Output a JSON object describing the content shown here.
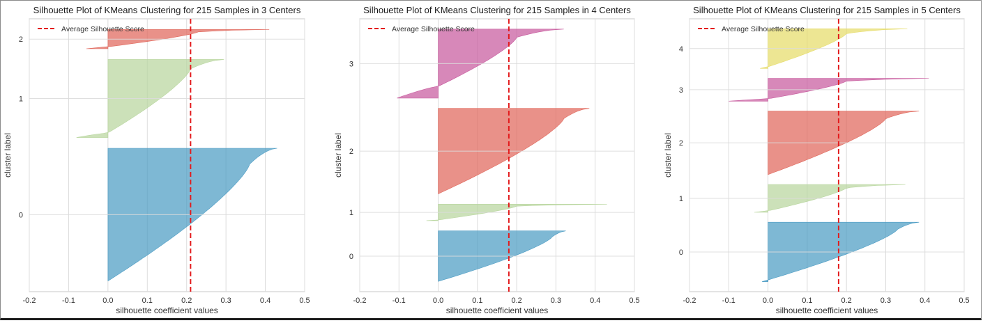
{
  "chart_data": [
    {
      "type": "silhouette",
      "title": "Silhouette Plot of KMeans Clustering for 215 Samples in 3 Centers",
      "xlabel": "silhouette coefficient values",
      "ylabel": "cluster label",
      "xlim": [
        -0.2,
        0.5
      ],
      "xticks": [
        "-0.2",
        "-0.1",
        "0.0",
        "0.1",
        "0.2",
        "0.3",
        "0.4",
        "0.5"
      ],
      "average_score": 0.21,
      "legend": {
        "label": "Average Silhouette Score",
        "position": "top-left"
      },
      "grid": true,
      "clusters": [
        {
          "label": "0",
          "color": "#4c9cc4",
          "size": 124,
          "max": 0.43,
          "min": 0.0,
          "knee": 0.36,
          "neg_frac": 0.0
        },
        {
          "label": "1",
          "color": "#b8d69e",
          "size": 73,
          "max": 0.295,
          "min": -0.08,
          "knee": 0.21,
          "neg_frac": 0.06
        },
        {
          "label": "2",
          "color": "#e0675b",
          "size": 18,
          "max": 0.41,
          "min": -0.055,
          "knee": 0.23,
          "neg_frac": 0.1
        }
      ]
    },
    {
      "type": "silhouette",
      "title": "Silhouette Plot of KMeans Clustering for 215 Samples in 4 Centers",
      "xlabel": "silhouette coefficient values",
      "ylabel": "cluster label",
      "xlim": [
        -0.2,
        0.5
      ],
      "xticks": [
        "-0.2",
        "-0.1",
        "0.0",
        "0.1",
        "0.2",
        "0.3",
        "0.4",
        "0.5"
      ],
      "average_score": 0.18,
      "legend": {
        "label": "Average Silhouette Score",
        "position": "top-left"
      },
      "grid": true,
      "clusters": [
        {
          "label": "0",
          "color": "#4c9cc4",
          "size": 49,
          "max": 0.325,
          "min": 0.0,
          "knee": 0.29,
          "neg_frac": 0.0
        },
        {
          "label": "1",
          "color": "#b8d69e",
          "size": 16,
          "max": 0.43,
          "min": -0.03,
          "knee": 0.2,
          "neg_frac": 0.04
        },
        {
          "label": "2",
          "color": "#e0675b",
          "size": 83,
          "max": 0.385,
          "min": 0.0,
          "knee": 0.32,
          "neg_frac": 0.0
        },
        {
          "label": "3",
          "color": "#c75a9e",
          "size": 67,
          "max": 0.32,
          "min": -0.105,
          "knee": 0.2,
          "neg_frac": 0.17
        }
      ]
    },
    {
      "type": "silhouette",
      "title": "Silhouette Plot of KMeans Clustering for 215 Samples in 5 Centers",
      "xlabel": "silhouette coefficient values",
      "ylabel": "cluster label",
      "xlim": [
        -0.2,
        0.5
      ],
      "xticks": [
        "-0.2",
        "-0.1",
        "0.0",
        "0.1",
        "0.2",
        "0.3",
        "0.4",
        "0.5"
      ],
      "average_score": 0.18,
      "legend": {
        "label": "Average Silhouette Score",
        "position": "top-left"
      },
      "grid": true,
      "clusters": [
        {
          "label": "0",
          "color": "#4c9cc4",
          "size": 60,
          "max": 0.385,
          "min": -0.015,
          "knee": 0.33,
          "neg_frac": 0.03
        },
        {
          "label": "1",
          "color": "#b8d69e",
          "size": 28,
          "max": 0.35,
          "min": -0.035,
          "knee": 0.2,
          "neg_frac": 0.05
        },
        {
          "label": "2",
          "color": "#e0675b",
          "size": 64,
          "max": 0.385,
          "min": 0.0,
          "knee": 0.3,
          "neg_frac": 0.0
        },
        {
          "label": "3",
          "color": "#c75a9e",
          "size": 23,
          "max": 0.41,
          "min": -0.1,
          "knee": 0.2,
          "neg_frac": 0.1
        },
        {
          "label": "4",
          "color": "#e6dc6a",
          "size": 40,
          "max": 0.355,
          "min": -0.02,
          "knee": 0.2,
          "neg_frac": 0.04
        }
      ]
    }
  ]
}
